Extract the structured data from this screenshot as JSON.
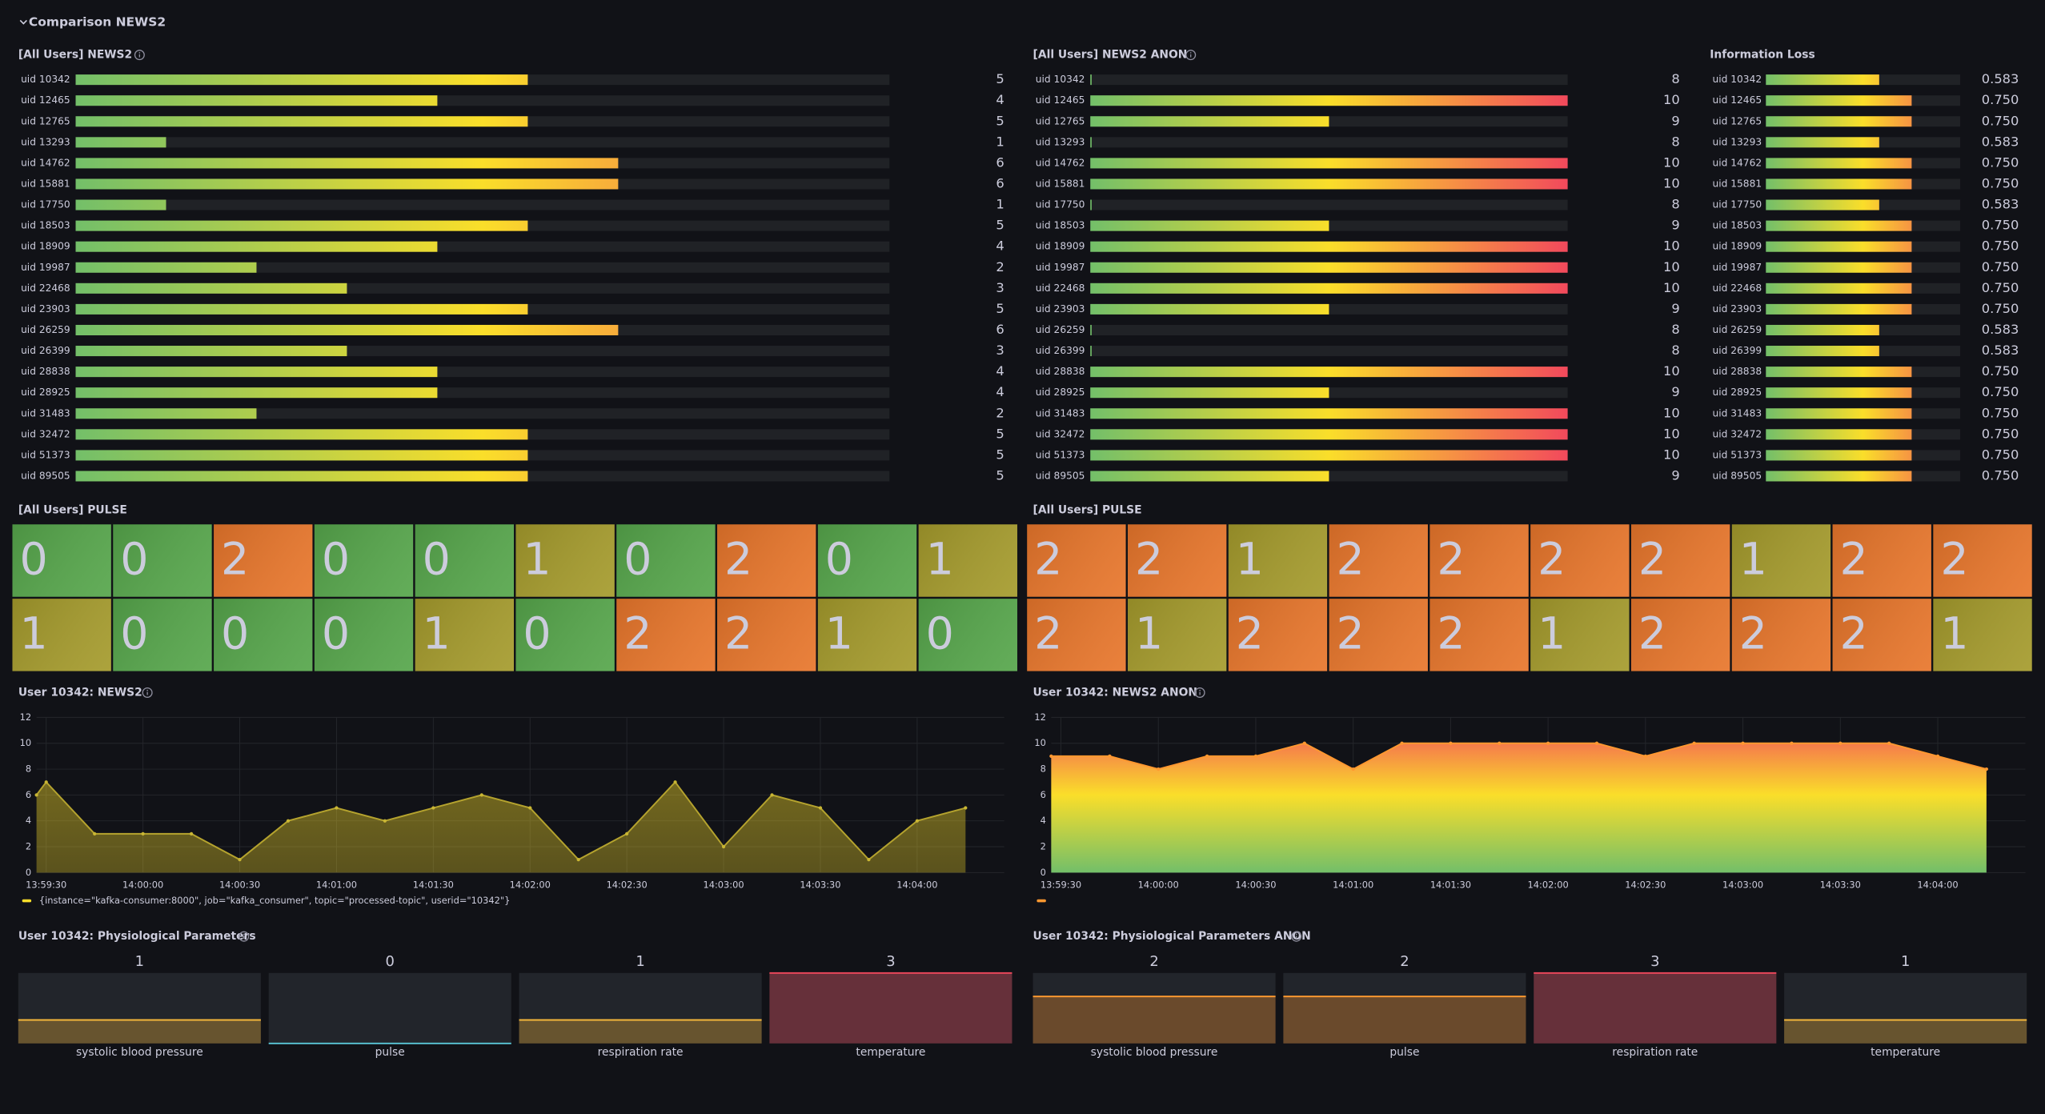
{
  "dashboard": {
    "row_title": "Comparison NEWS2",
    "users": [
      "uid 10342",
      "uid 12465",
      "uid 12765",
      "uid 13293",
      "uid 14762",
      "uid 15881",
      "uid 17750",
      "uid 18503",
      "uid 18909",
      "uid 19987",
      "uid 22468",
      "uid 23903",
      "uid 26259",
      "uid 26399",
      "uid 28838",
      "uid 28925",
      "uid 31483",
      "uid 32472",
      "uid 51373",
      "uid 89505"
    ],
    "gradient_colors": [
      "#73bf69",
      "#fade2a",
      "#f2495c"
    ],
    "bar_panels": [
      {
        "title": "[All Users] NEWS2",
        "min": 0,
        "max": 9,
        "values": [
          5,
          4,
          5,
          1,
          6,
          6,
          1,
          5,
          4,
          2,
          3,
          5,
          6,
          3,
          4,
          4,
          2,
          5,
          5,
          5
        ]
      },
      {
        "title": "[All Users] NEWS2 ANON",
        "min": 8,
        "max": 10,
        "values": [
          8,
          10,
          9,
          8,
          10,
          10,
          8,
          9,
          10,
          10,
          10,
          9,
          8,
          8,
          10,
          9,
          10,
          10,
          10,
          9
        ]
      },
      {
        "title": "Information Loss",
        "min": 0,
        "max": 1,
        "values": [
          0.583,
          0.75,
          0.75,
          0.583,
          0.75,
          0.75,
          0.583,
          0.75,
          0.75,
          0.75,
          0.75,
          0.75,
          0.583,
          0.583,
          0.75,
          0.75,
          0.75,
          0.75,
          0.75,
          0.75
        ],
        "value_labels": [
          "0.583",
          "0.750",
          "0.750",
          "0.583",
          "0.750",
          "0.750",
          "0.583",
          "0.750",
          "0.750",
          "0.750",
          "0.750",
          "0.750",
          "0.583",
          "0.583",
          "0.750",
          "0.750",
          "0.750",
          "0.750",
          "0.750",
          "0.750"
        ]
      }
    ],
    "pulse_colors": [
      "#56a64b",
      "#a59b2c",
      "#e8762b"
    ],
    "pulse_panels": [
      {
        "title": "[All Users] PULSE",
        "values": [
          0,
          0,
          2,
          0,
          0,
          1,
          0,
          2,
          0,
          1,
          1,
          0,
          0,
          0,
          1,
          0,
          2,
          2,
          1,
          0
        ]
      },
      {
        "title": "[All Users] PULSE",
        "values": [
          2,
          2,
          1,
          2,
          2,
          2,
          2,
          1,
          2,
          2,
          2,
          1,
          2,
          2,
          2,
          1,
          2,
          2,
          2,
          1
        ]
      }
    ],
    "line_panels": [
      {
        "title": "User 10342: NEWS2",
        "color": "#fade2a",
        "gradient": false,
        "legend": "{instance=\"kafka-consumer:8000\", job=\"kafka_consumer\", topic=\"processed-topic\", userid=\"10342\"}",
        "x": [
          "13:59:27",
          "13:59:30",
          "13:59:45",
          "14:00:00",
          "14:00:15",
          "14:00:30",
          "14:00:45",
          "14:01:00",
          "14:01:15",
          "14:01:30",
          "14:01:45",
          "14:02:00",
          "14:02:15",
          "14:02:30",
          "14:02:45",
          "14:03:00",
          "14:03:15",
          "14:03:30",
          "14:03:45",
          "14:04:00",
          "14:04:15"
        ],
        "values": [
          6,
          7,
          3,
          3,
          3,
          1,
          4,
          5,
          4,
          5,
          6,
          5,
          1,
          3,
          7,
          2,
          6,
          5,
          1,
          4,
          5
        ],
        "xlim": [
          "13:59:27",
          "14:04:27"
        ],
        "xticks": [
          "13:59:30",
          "14:00:00",
          "14:00:30",
          "14:01:00",
          "14:01:30",
          "14:02:00",
          "14:02:30",
          "14:03:00",
          "14:03:30",
          "14:04:00"
        ],
        "ylim": [
          0,
          12
        ],
        "yticks": [
          0,
          2,
          4,
          6,
          8,
          10,
          12
        ]
      },
      {
        "title": "User 10342: NEWS2 ANON",
        "color": "#ff9830",
        "gradient": true,
        "x": [
          "13:59:27",
          "13:59:45",
          "14:00:00",
          "14:00:15",
          "14:00:30",
          "14:00:45",
          "14:01:00",
          "14:01:15",
          "14:01:30",
          "14:01:45",
          "14:02:00",
          "14:02:15",
          "14:02:30",
          "14:02:45",
          "14:03:00",
          "14:03:15",
          "14:03:30",
          "14:03:45",
          "14:04:00",
          "14:04:15"
        ],
        "values": [
          9,
          9,
          8,
          9,
          9,
          10,
          8,
          10,
          10,
          10,
          10,
          10,
          9,
          10,
          10,
          10,
          10,
          10,
          9,
          8
        ],
        "xlim": [
          "13:59:27",
          "14:04:27"
        ],
        "xticks": [
          "13:59:30",
          "14:00:00",
          "14:00:30",
          "14:01:00",
          "14:01:30",
          "14:02:00",
          "14:02:30",
          "14:03:00",
          "14:03:30",
          "14:04:00"
        ],
        "ylim": [
          0,
          12
        ],
        "yticks": [
          0,
          2,
          4,
          6,
          8,
          10,
          12
        ]
      }
    ],
    "param_max": 3,
    "param_colors": [
      "#5ac8d8",
      "#f5b73b",
      "#ff9830",
      "#f2495c"
    ],
    "param_panels": [
      {
        "title": "User 10342: Physiological Parameters",
        "categories": [
          "systolic blood pressure",
          "pulse",
          "respiration rate",
          "temperature"
        ],
        "values": [
          1,
          0,
          1,
          3
        ]
      },
      {
        "title": "User 10342: Physiological Parameters ANON",
        "categories": [
          "systolic blood pressure",
          "pulse",
          "respiration rate",
          "temperature"
        ],
        "values": [
          2,
          2,
          3,
          1
        ]
      }
    ]
  }
}
